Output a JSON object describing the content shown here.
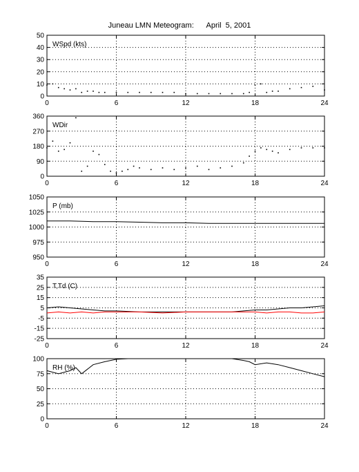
{
  "figure_title": "Juneau LMN Meteogram:      April  5, 2001",
  "chart_data": [
    {
      "type": "scatter",
      "panel_label": "WSpd (kts)",
      "xlim": [
        0,
        24
      ],
      "ylim": [
        0,
        50
      ],
      "x_ticks": [
        0,
        6,
        12,
        18,
        24
      ],
      "y_ticks": [
        0,
        10,
        20,
        30,
        40,
        50
      ],
      "grid": true,
      "series": [
        {
          "color": "#000000",
          "x": [
            0,
            0.5,
            1,
            1.5,
            2,
            2.5,
            3,
            3.5,
            4,
            4.5,
            5,
            6,
            7,
            8,
            9,
            10,
            11,
            12,
            13,
            14,
            15,
            16,
            17,
            17.5,
            18,
            18.5,
            19,
            19.5,
            20,
            21,
            22,
            23,
            24
          ],
          "y": [
            9,
            10,
            7,
            6,
            5,
            6,
            3,
            4,
            4,
            3,
            3,
            3,
            3,
            3,
            3,
            3,
            3,
            2,
            2,
            2,
            2,
            2,
            2,
            3,
            9,
            10,
            3,
            4,
            4,
            6,
            7,
            8,
            5
          ]
        }
      ]
    },
    {
      "type": "scatter",
      "panel_label": "WDir",
      "xlim": [
        0,
        24
      ],
      "ylim": [
        0,
        360
      ],
      "x_ticks": [
        0,
        6,
        12,
        18,
        24
      ],
      "y_ticks": [
        0,
        90,
        180,
        270,
        360
      ],
      "grid": true,
      "series": [
        {
          "color": "#000000",
          "x": [
            0,
            0.5,
            1,
            1.5,
            2,
            2.5,
            3,
            3.5,
            4,
            4.5,
            5,
            5.5,
            6,
            6.5,
            7,
            7.5,
            8,
            9,
            10,
            11,
            12,
            13,
            14,
            15,
            16,
            17,
            17.5,
            18,
            18.5,
            19,
            19.5,
            20,
            21,
            22,
            23,
            24
          ],
          "y": [
            170,
            210,
            150,
            160,
            200,
            350,
            30,
            60,
            150,
            130,
            70,
            30,
            20,
            30,
            40,
            60,
            50,
            40,
            50,
            40,
            50,
            60,
            40,
            50,
            60,
            80,
            120,
            150,
            170,
            160,
            150,
            140,
            160,
            170,
            170,
            170
          ]
        }
      ]
    },
    {
      "type": "line",
      "panel_label": "P (mb)",
      "xlim": [
        0,
        24
      ],
      "ylim": [
        950,
        1050
      ],
      "x_ticks": [
        0,
        6,
        12,
        18,
        24
      ],
      "y_ticks": [
        950,
        975,
        1000,
        1025,
        1050
      ],
      "grid": true,
      "series": [
        {
          "color": "#000000",
          "x": [
            0,
            2,
            4,
            6,
            8,
            10,
            12,
            14,
            16,
            18,
            20,
            22,
            24
          ],
          "y": [
            1010,
            1010,
            1009,
            1009,
            1008,
            1007,
            1007,
            1006,
            1006,
            1006,
            1006,
            1006,
            1006
          ]
        }
      ]
    },
    {
      "type": "line",
      "panel_label": "T,Td (C)",
      "xlim": [
        0,
        24
      ],
      "ylim": [
        -25,
        35
      ],
      "x_ticks": [
        0,
        6,
        12,
        18,
        24
      ],
      "y_ticks": [
        -25,
        -15,
        -5,
        5,
        15,
        25,
        35
      ],
      "grid": true,
      "series": [
        {
          "color": "#000000",
          "x": [
            0,
            1,
            2,
            3,
            4,
            5,
            6,
            8,
            10,
            12,
            14,
            16,
            17,
            18,
            19,
            20,
            21,
            22,
            23,
            24
          ],
          "y": [
            5,
            6,
            5,
            4,
            3,
            2,
            2,
            1,
            1,
            1,
            1,
            1,
            2,
            3,
            3,
            4,
            5,
            5,
            6,
            7
          ]
        },
        {
          "color": "#ff0000",
          "x": [
            0,
            1,
            2,
            3,
            4,
            5,
            6,
            8,
            10,
            12,
            14,
            16,
            17,
            18,
            19,
            20,
            21,
            22,
            23,
            24
          ],
          "y": [
            0,
            1,
            0,
            1,
            0,
            1,
            1,
            1,
            0,
            1,
            1,
            1,
            1,
            1,
            0,
            1,
            1,
            0,
            0,
            1
          ]
        }
      ]
    },
    {
      "type": "line",
      "panel_label": "RH (%)",
      "xlim": [
        0,
        24
      ],
      "ylim": [
        0,
        100
      ],
      "x_ticks": [
        0,
        6,
        12,
        18,
        24
      ],
      "y_ticks": [
        0,
        25,
        50,
        75,
        100
      ],
      "grid": true,
      "series": [
        {
          "color": "#000000",
          "x": [
            0,
            1,
            2,
            2.5,
            3,
            4,
            5,
            6,
            7,
            8,
            10,
            12,
            14,
            16,
            17,
            17.5,
            18,
            19,
            20,
            21,
            22,
            23,
            24
          ],
          "y": [
            80,
            75,
            80,
            85,
            75,
            90,
            95,
            99,
            100,
            100,
            100,
            100,
            100,
            100,
            97,
            95,
            90,
            93,
            90,
            85,
            80,
            75,
            70
          ]
        }
      ]
    }
  ]
}
